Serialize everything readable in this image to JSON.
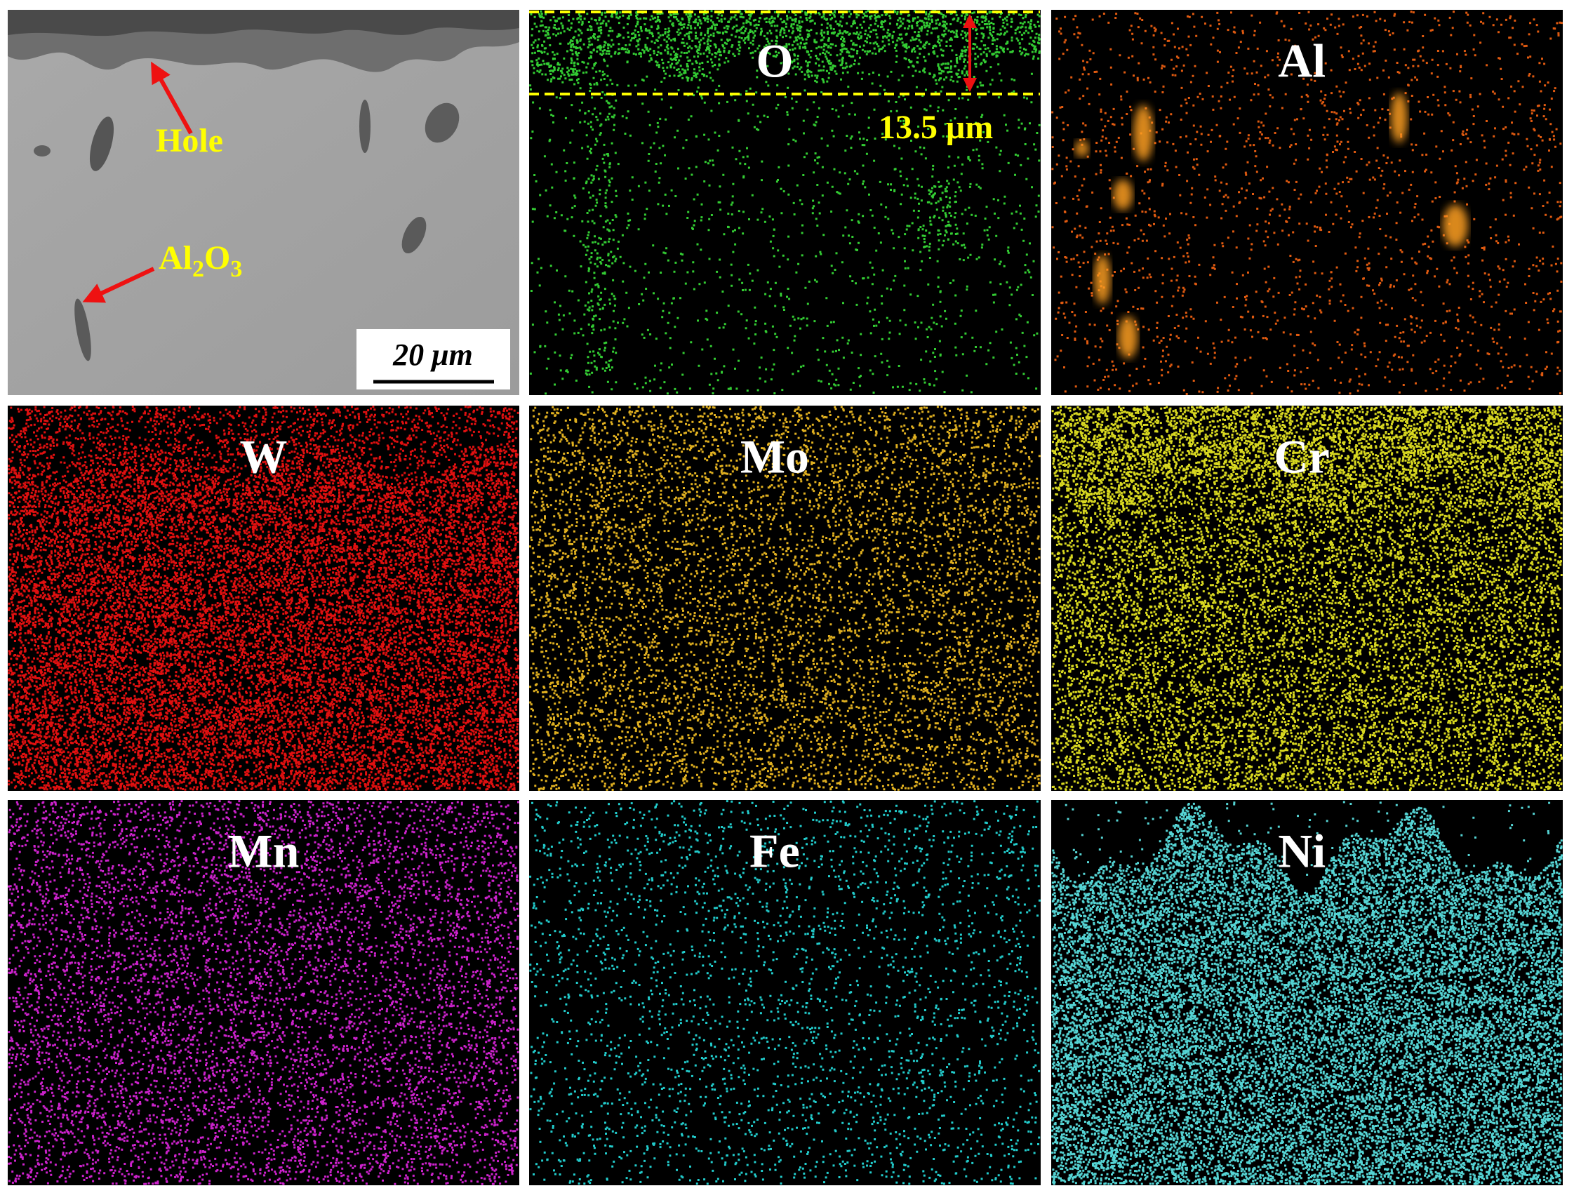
{
  "element_maps": [
    {
      "label": "O"
    },
    {
      "label": "Al"
    },
    {
      "label": "W"
    },
    {
      "label": "Mo"
    },
    {
      "label": "Cr"
    },
    {
      "label": "Mn"
    },
    {
      "label": "Fe"
    },
    {
      "label": "Ni"
    }
  ],
  "annotations": {
    "hole": "Hole",
    "alumina": {
      "part1": "Al",
      "sub1": "2",
      "part2": "O",
      "sub2": "3"
    },
    "scale_bar": "20 μm",
    "oxide_thickness": "13.5 μm"
  }
}
